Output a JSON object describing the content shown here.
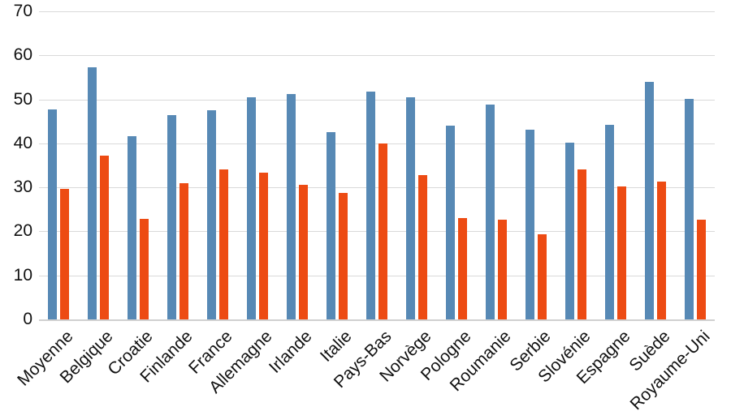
{
  "chart_data": {
    "type": "bar",
    "title": "",
    "xlabel": "",
    "ylabel": "",
    "ylim": [
      0,
      70
    ],
    "yticks": [
      0,
      10,
      20,
      30,
      40,
      50,
      60,
      70
    ],
    "grid": true,
    "legend": "none",
    "categories": [
      "Moyenne",
      "Belgique",
      "Croatie",
      "Finlande",
      "France",
      "Allemagne",
      "Irlande",
      "Italie",
      "Pays-Bas",
      "Norvège",
      "Pologne",
      "Roumanie",
      "Serbie",
      "Slovénie",
      "Espagne",
      "Suède",
      "Royaume-Uni"
    ],
    "series": [
      {
        "name": "serie-bleue",
        "color": "#5789B5",
        "values": [
          47.8,
          57.3,
          41.6,
          46.5,
          47.5,
          50.5,
          51.2,
          42.5,
          51.7,
          50.5,
          44.0,
          48.8,
          43.1,
          40.2,
          44.3,
          54.0,
          50.1
        ]
      },
      {
        "name": "serie-orange",
        "color": "#ED4B13",
        "values": [
          29.7,
          37.3,
          22.8,
          30.9,
          34.1,
          33.4,
          30.5,
          28.7,
          40.0,
          32.8,
          23.1,
          22.6,
          19.4,
          34.0,
          30.3,
          31.4,
          22.6
        ]
      }
    ],
    "colors": {
      "gridline": "#d9d9d9",
      "axis_line": "#d0d0d0",
      "tick_text": "#111111",
      "background": "#ffffff"
    }
  }
}
